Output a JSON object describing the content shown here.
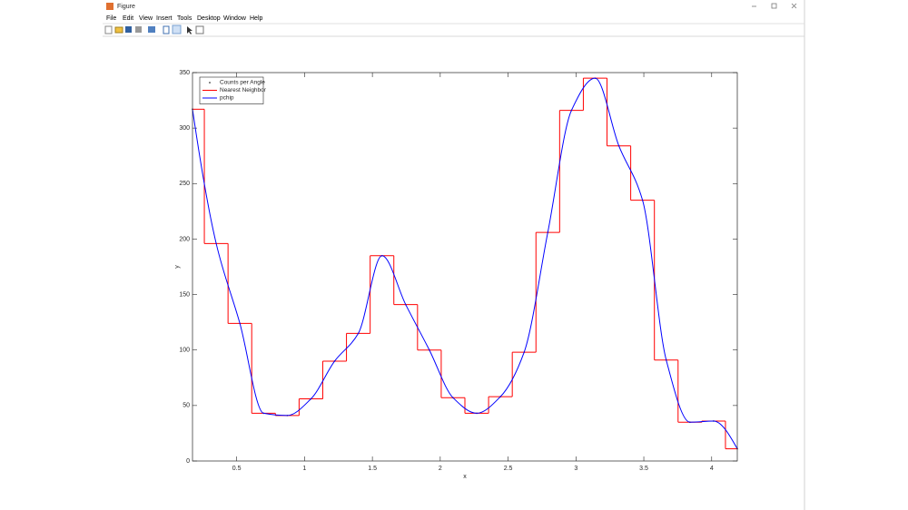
{
  "window": {
    "title": "Figure",
    "menu": [
      "File",
      "Edit",
      "View",
      "Insert",
      "Tools",
      "Desktop",
      "Window",
      "Help"
    ]
  },
  "chart_data": {
    "type": "line",
    "xlabel": "x",
    "ylabel": "y",
    "x": [
      0.1745,
      0.3491,
      0.5236,
      0.6981,
      0.8727,
      1.0472,
      1.2217,
      1.3963,
      1.5708,
      1.7453,
      1.9199,
      2.0944,
      2.2689,
      2.4435,
      2.618,
      2.7925,
      2.9671,
      3.1416,
      3.3161,
      3.4907,
      3.6652,
      3.8397,
      4.0143,
      4.1888
    ],
    "series": [
      {
        "name": "Counts per Angle",
        "color": "#000000",
        "kind": "points",
        "values": [
          317,
          196,
          124,
          43,
          41,
          56,
          90,
          115,
          185,
          141,
          100,
          57,
          43,
          58,
          98,
          206,
          316,
          345,
          284,
          235,
          91,
          35,
          36,
          11
        ]
      },
      {
        "name": "Nearest Neighbor",
        "color": "#ff0000",
        "kind": "nearest",
        "values": [
          317,
          196,
          124,
          43,
          41,
          56,
          90,
          115,
          185,
          141,
          100,
          57,
          43,
          58,
          98,
          206,
          316,
          345,
          284,
          235,
          91,
          35,
          36,
          11
        ]
      },
      {
        "name": "pchip",
        "color": "#0000ff",
        "kind": "pchip",
        "values": [
          317,
          196,
          124,
          43,
          41,
          56,
          90,
          115,
          185,
          141,
          100,
          57,
          43,
          58,
          98,
          206,
          316,
          345,
          284,
          235,
          91,
          35,
          36,
          11
        ]
      }
    ],
    "xlim": [
      0.1745,
      4.1888
    ],
    "ylim": [
      0,
      350
    ],
    "xticks": [
      0.5,
      1,
      1.5,
      2,
      2.5,
      3,
      3.5,
      4
    ],
    "yticks": [
      0,
      50,
      100,
      150,
      200,
      250,
      300,
      350
    ],
    "legend": "top-left"
  }
}
